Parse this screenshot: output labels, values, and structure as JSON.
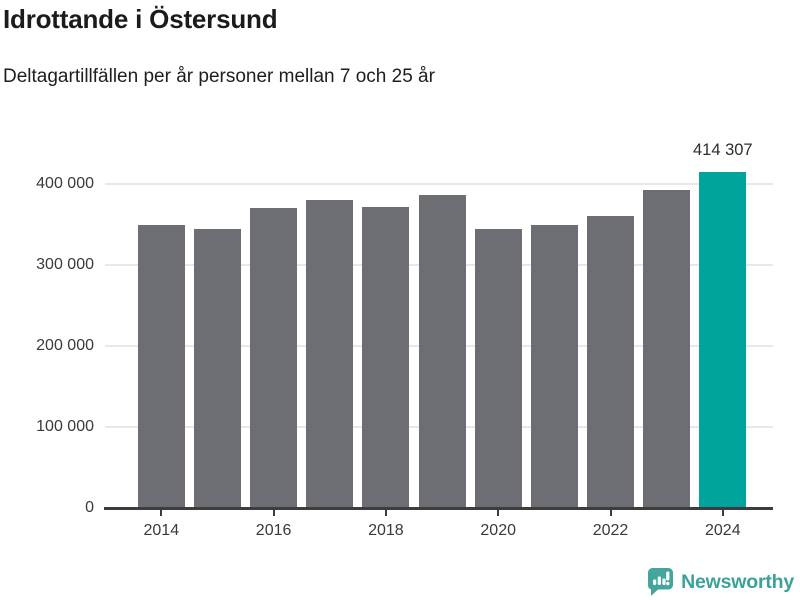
{
  "header": {
    "title": "Idrottande i Östersund",
    "subtitle": "Deltagartillfällen per år personer mellan 7 och 25 år"
  },
  "chart_data": {
    "type": "bar",
    "title": "Idrottande i Östersund",
    "subtitle": "Deltagartillfällen per år personer mellan 7 och 25 år",
    "categories": [
      "2014",
      "2015",
      "2016",
      "2017",
      "2018",
      "2019",
      "2020",
      "2021",
      "2022",
      "2023",
      "2024"
    ],
    "values": [
      350000,
      344000,
      370000,
      380000,
      371000,
      386000,
      345000,
      350000,
      361000,
      393000,
      414307
    ],
    "highlight_index": 10,
    "highlight_label": "414 307",
    "xlabel": "",
    "ylabel": "",
    "ylim": [
      0,
      430000
    ],
    "yticks": [
      0,
      100000,
      200000,
      300000,
      400000
    ],
    "ytick_labels": [
      "0",
      "100 000",
      "200 000",
      "300 000",
      "400 000"
    ],
    "xtick_labels": [
      "2014",
      "2016",
      "2018",
      "2020",
      "2022",
      "2024"
    ],
    "grid": true,
    "legend": "none",
    "bar_color": "#6d6d74",
    "highlight_color": "#00a49c",
    "gridline_color": "#e8e8e8",
    "axis_color": "#3d3d3d"
  },
  "footer": {
    "brand": "Newsworthy",
    "brand_color": "#3ba29a",
    "logo_icon": "speech-bubble-bar-chart"
  }
}
